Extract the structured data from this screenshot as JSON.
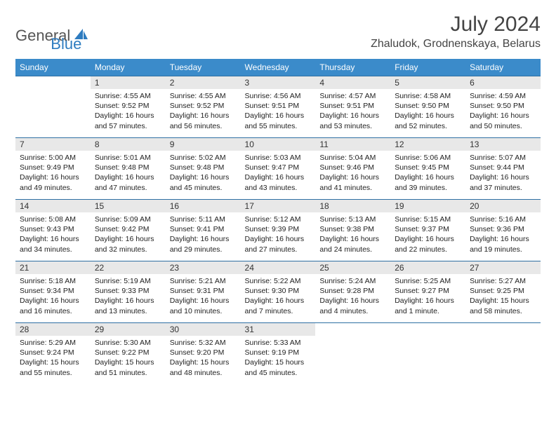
{
  "logo": {
    "general": "General",
    "blue": "Blue"
  },
  "title": "July 2024",
  "location": "Zhaludok, Grodnenskaya, Belarus",
  "colors": {
    "header_bg": "#3b8bca",
    "header_text": "#ffffff",
    "daynum_bg": "#e8e8e8",
    "row_border": "#2e6fa3",
    "logo_blue": "#2e7cc0"
  },
  "weekdays": [
    "Sunday",
    "Monday",
    "Tuesday",
    "Wednesday",
    "Thursday",
    "Friday",
    "Saturday"
  ],
  "weeks": [
    [
      {
        "day": "",
        "sunrise": "",
        "sunset": "",
        "daylight": ""
      },
      {
        "day": "1",
        "sunrise": "4:55 AM",
        "sunset": "9:52 PM",
        "daylight": "16 hours and 57 minutes."
      },
      {
        "day": "2",
        "sunrise": "4:55 AM",
        "sunset": "9:52 PM",
        "daylight": "16 hours and 56 minutes."
      },
      {
        "day": "3",
        "sunrise": "4:56 AM",
        "sunset": "9:51 PM",
        "daylight": "16 hours and 55 minutes."
      },
      {
        "day": "4",
        "sunrise": "4:57 AM",
        "sunset": "9:51 PM",
        "daylight": "16 hours and 53 minutes."
      },
      {
        "day": "5",
        "sunrise": "4:58 AM",
        "sunset": "9:50 PM",
        "daylight": "16 hours and 52 minutes."
      },
      {
        "day": "6",
        "sunrise": "4:59 AM",
        "sunset": "9:50 PM",
        "daylight": "16 hours and 50 minutes."
      }
    ],
    [
      {
        "day": "7",
        "sunrise": "5:00 AM",
        "sunset": "9:49 PM",
        "daylight": "16 hours and 49 minutes."
      },
      {
        "day": "8",
        "sunrise": "5:01 AM",
        "sunset": "9:48 PM",
        "daylight": "16 hours and 47 minutes."
      },
      {
        "day": "9",
        "sunrise": "5:02 AM",
        "sunset": "9:48 PM",
        "daylight": "16 hours and 45 minutes."
      },
      {
        "day": "10",
        "sunrise": "5:03 AM",
        "sunset": "9:47 PM",
        "daylight": "16 hours and 43 minutes."
      },
      {
        "day": "11",
        "sunrise": "5:04 AM",
        "sunset": "9:46 PM",
        "daylight": "16 hours and 41 minutes."
      },
      {
        "day": "12",
        "sunrise": "5:06 AM",
        "sunset": "9:45 PM",
        "daylight": "16 hours and 39 minutes."
      },
      {
        "day": "13",
        "sunrise": "5:07 AM",
        "sunset": "9:44 PM",
        "daylight": "16 hours and 37 minutes."
      }
    ],
    [
      {
        "day": "14",
        "sunrise": "5:08 AM",
        "sunset": "9:43 PM",
        "daylight": "16 hours and 34 minutes."
      },
      {
        "day": "15",
        "sunrise": "5:09 AM",
        "sunset": "9:42 PM",
        "daylight": "16 hours and 32 minutes."
      },
      {
        "day": "16",
        "sunrise": "5:11 AM",
        "sunset": "9:41 PM",
        "daylight": "16 hours and 29 minutes."
      },
      {
        "day": "17",
        "sunrise": "5:12 AM",
        "sunset": "9:39 PM",
        "daylight": "16 hours and 27 minutes."
      },
      {
        "day": "18",
        "sunrise": "5:13 AM",
        "sunset": "9:38 PM",
        "daylight": "16 hours and 24 minutes."
      },
      {
        "day": "19",
        "sunrise": "5:15 AM",
        "sunset": "9:37 PM",
        "daylight": "16 hours and 22 minutes."
      },
      {
        "day": "20",
        "sunrise": "5:16 AM",
        "sunset": "9:36 PM",
        "daylight": "16 hours and 19 minutes."
      }
    ],
    [
      {
        "day": "21",
        "sunrise": "5:18 AM",
        "sunset": "9:34 PM",
        "daylight": "16 hours and 16 minutes."
      },
      {
        "day": "22",
        "sunrise": "5:19 AM",
        "sunset": "9:33 PM",
        "daylight": "16 hours and 13 minutes."
      },
      {
        "day": "23",
        "sunrise": "5:21 AM",
        "sunset": "9:31 PM",
        "daylight": "16 hours and 10 minutes."
      },
      {
        "day": "24",
        "sunrise": "5:22 AM",
        "sunset": "9:30 PM",
        "daylight": "16 hours and 7 minutes."
      },
      {
        "day": "25",
        "sunrise": "5:24 AM",
        "sunset": "9:28 PM",
        "daylight": "16 hours and 4 minutes."
      },
      {
        "day": "26",
        "sunrise": "5:25 AM",
        "sunset": "9:27 PM",
        "daylight": "16 hours and 1 minute."
      },
      {
        "day": "27",
        "sunrise": "5:27 AM",
        "sunset": "9:25 PM",
        "daylight": "15 hours and 58 minutes."
      }
    ],
    [
      {
        "day": "28",
        "sunrise": "5:29 AM",
        "sunset": "9:24 PM",
        "daylight": "15 hours and 55 minutes."
      },
      {
        "day": "29",
        "sunrise": "5:30 AM",
        "sunset": "9:22 PM",
        "daylight": "15 hours and 51 minutes."
      },
      {
        "day": "30",
        "sunrise": "5:32 AM",
        "sunset": "9:20 PM",
        "daylight": "15 hours and 48 minutes."
      },
      {
        "day": "31",
        "sunrise": "5:33 AM",
        "sunset": "9:19 PM",
        "daylight": "15 hours and 45 minutes."
      },
      {
        "day": "",
        "sunrise": "",
        "sunset": "",
        "daylight": ""
      },
      {
        "day": "",
        "sunrise": "",
        "sunset": "",
        "daylight": ""
      },
      {
        "day": "",
        "sunrise": "",
        "sunset": "",
        "daylight": ""
      }
    ]
  ],
  "labels": {
    "sunrise": "Sunrise:",
    "sunset": "Sunset:",
    "daylight": "Daylight:"
  }
}
